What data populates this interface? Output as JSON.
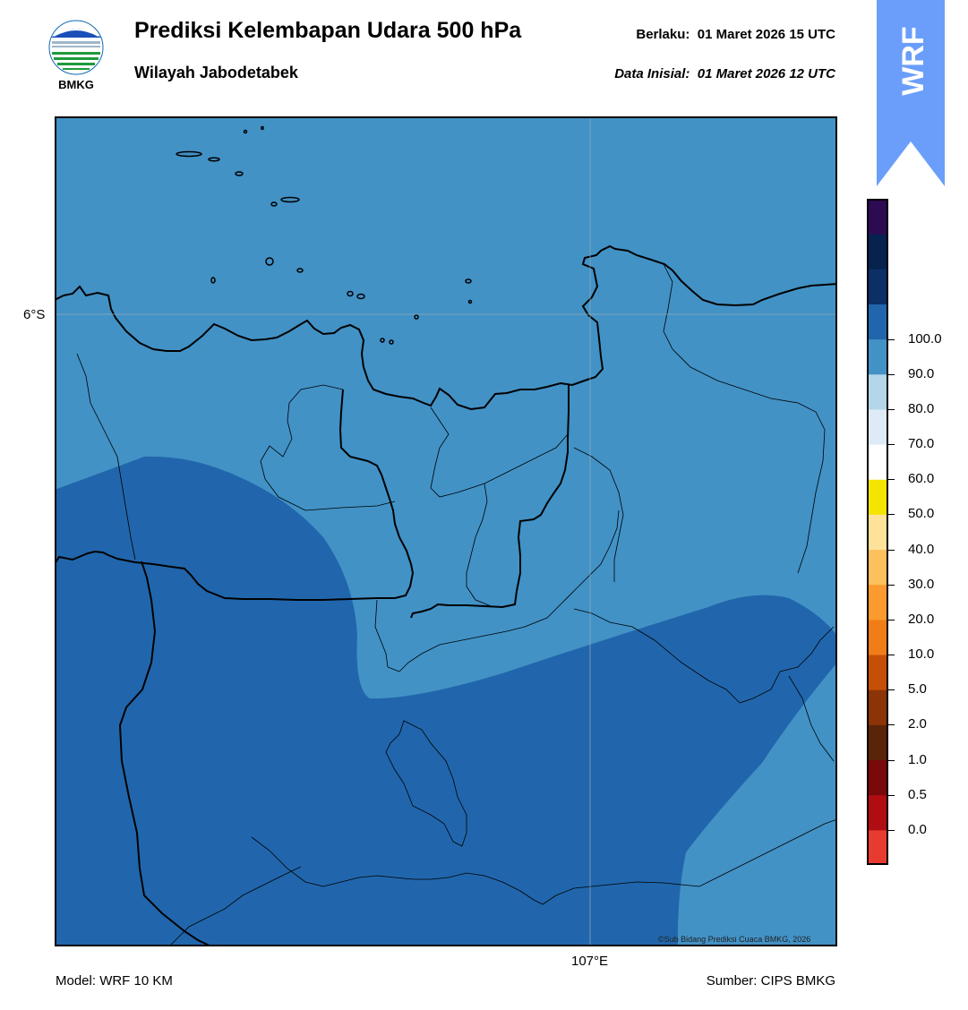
{
  "header": {
    "title": "Prediksi Kelembapan Udara 500 hPa",
    "subtitle": "Wilayah Jabodetabek",
    "valid_label": "Berlaku:",
    "valid_value": "01 Maret 2026 15 UTC",
    "init_label": "Data Inisial:",
    "init_value": "01 Maret 2026 12 UTC"
  },
  "logo": {
    "text": "BMKG",
    "icon": "bmkg-logo"
  },
  "badge": {
    "text": "WRF",
    "color": "#6a9efa"
  },
  "map": {
    "lat_label": "6°S",
    "lon_label": "107°E",
    "copyright": "©Sub Bidang Prediksi Cuaca BMKG, 2026",
    "fill_colors": {
      "band_70_80": "#4292c6",
      "band_80_90": "#2166ac"
    }
  },
  "legend": {
    "ticks": [
      "0.0",
      "0.5",
      "1.0",
      "2.0",
      "5.0",
      "10.0",
      "20.0",
      "30.0",
      "40.0",
      "50.0",
      "60.0",
      "70.0",
      "80.0",
      "90.0",
      "100.0"
    ],
    "colors": [
      "#e63b2e",
      "#b00d12",
      "#7a0a0a",
      "#5a2408",
      "#8b3407",
      "#c54f07",
      "#f07d18",
      "#fb9a2e",
      "#fcc15c",
      "#ffe29a",
      "#f5e400",
      "#ffffff",
      "#deebf7",
      "#b3d6e8",
      "#4292c6",
      "#2166ac",
      "#0c2f66",
      "#08224f",
      "#2d0b52"
    ]
  },
  "footer": {
    "model": "Model: WRF 10 KM",
    "source": "Sumber: CIPS BMKG"
  }
}
